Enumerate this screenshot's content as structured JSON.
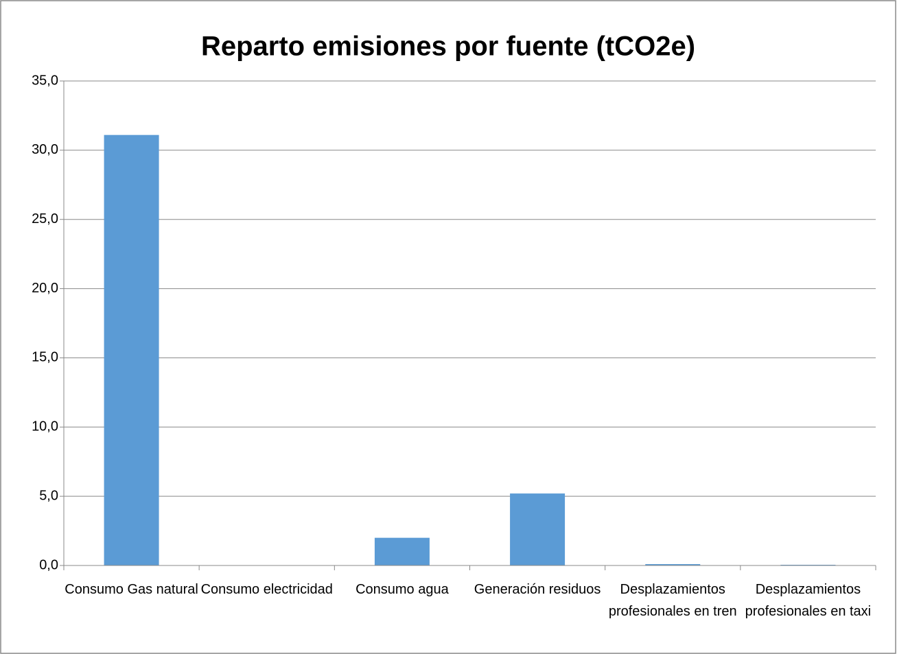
{
  "chart_data": {
    "type": "bar",
    "title": "Reparto emisiones por fuente (tCO2e)",
    "categories": [
      "Consumo Gas natural",
      "Consumo electricidad",
      "Consumo agua",
      "Generación residuos",
      "Desplazamientos profesionales en tren",
      "Desplazamientos profesionales en taxi"
    ],
    "values": [
      31.1,
      0,
      2.0,
      5.2,
      0.1,
      0.05
    ],
    "color": "#5b9bd5",
    "ylim": [
      0,
      35
    ],
    "yticks": [
      {
        "value": 0,
        "label": "0,0"
      },
      {
        "value": 5,
        "label": "5,0"
      },
      {
        "value": 10,
        "label": "10,0"
      },
      {
        "value": 15,
        "label": "15,0"
      },
      {
        "value": 20,
        "label": "20,0"
      },
      {
        "value": 25,
        "label": "25,0"
      },
      {
        "value": 30,
        "label": "30,0"
      },
      {
        "value": 35,
        "label": "35,0"
      }
    ],
    "grid": true
  }
}
